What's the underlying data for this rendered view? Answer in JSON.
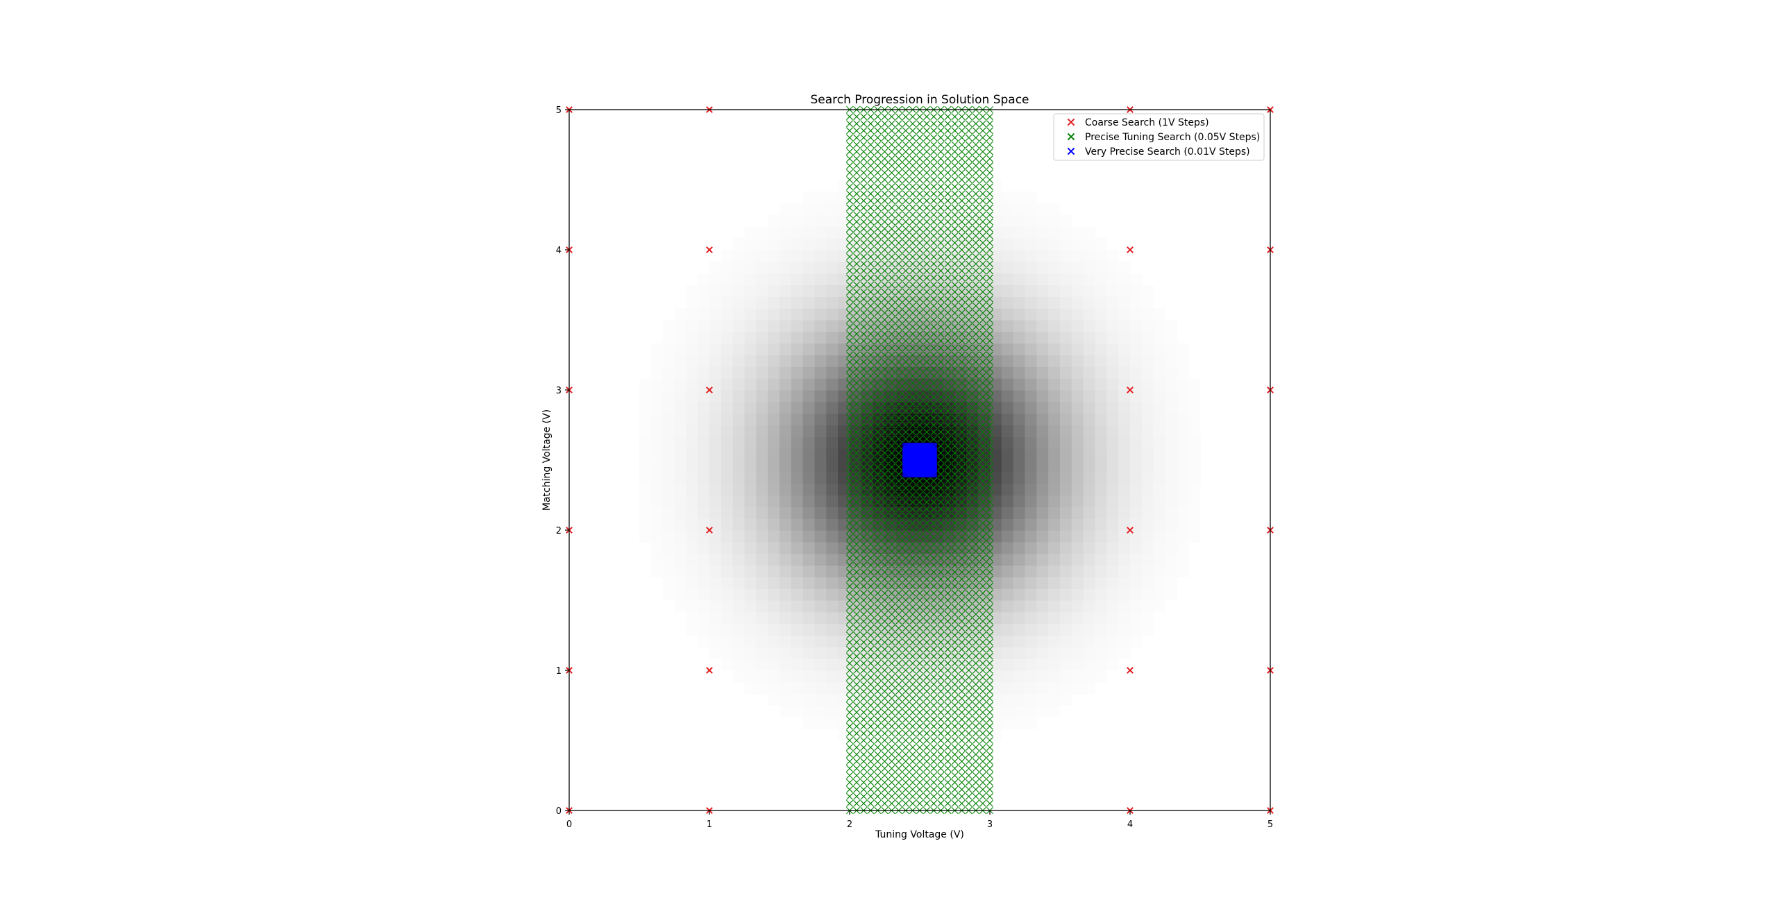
{
  "chart_data": {
    "type": "scatter",
    "title": "Search Progression in Solution Space",
    "xlabel": "Tuning Voltage (V)",
    "ylabel": "Matching Voltage (V)",
    "xlim": [
      0,
      5
    ],
    "ylim": [
      0,
      5
    ],
    "xticks": [
      0,
      1,
      2,
      3,
      4,
      5
    ],
    "yticks": [
      0,
      1,
      2,
      3,
      4,
      5
    ],
    "xtick_labels": [
      "0",
      "1",
      "2",
      "3",
      "4",
      "5"
    ],
    "ytick_labels": [
      "0",
      "1",
      "2",
      "3",
      "4",
      "5"
    ],
    "grid": false,
    "legend_position": "top-right",
    "background": {
      "type": "heatmap",
      "colormap": "gray_r",
      "center": [
        2.5,
        2.5
      ],
      "description_cells": 60
    },
    "series": [
      {
        "name": "Coarse Search (1V Steps)",
        "color": "#e31a1c",
        "marker": "x",
        "x_range": [
          0,
          5
        ],
        "y_range": [
          0,
          5
        ],
        "step": 1,
        "visible_x": [
          0,
          1,
          4,
          5
        ]
      },
      {
        "name": "Precise Tuning Search (0.05V Steps)",
        "color": "#008000",
        "marker": "x",
        "x_range": [
          2,
          3
        ],
        "y_range": [
          0,
          5
        ],
        "step": 0.05
      },
      {
        "name": "Very Precise Search (0.01V Steps)",
        "color": "#0000ff",
        "marker": "x",
        "x_range": [
          2.4,
          2.6
        ],
        "y_range": [
          2.4,
          2.6
        ],
        "step": 0.01
      }
    ]
  }
}
